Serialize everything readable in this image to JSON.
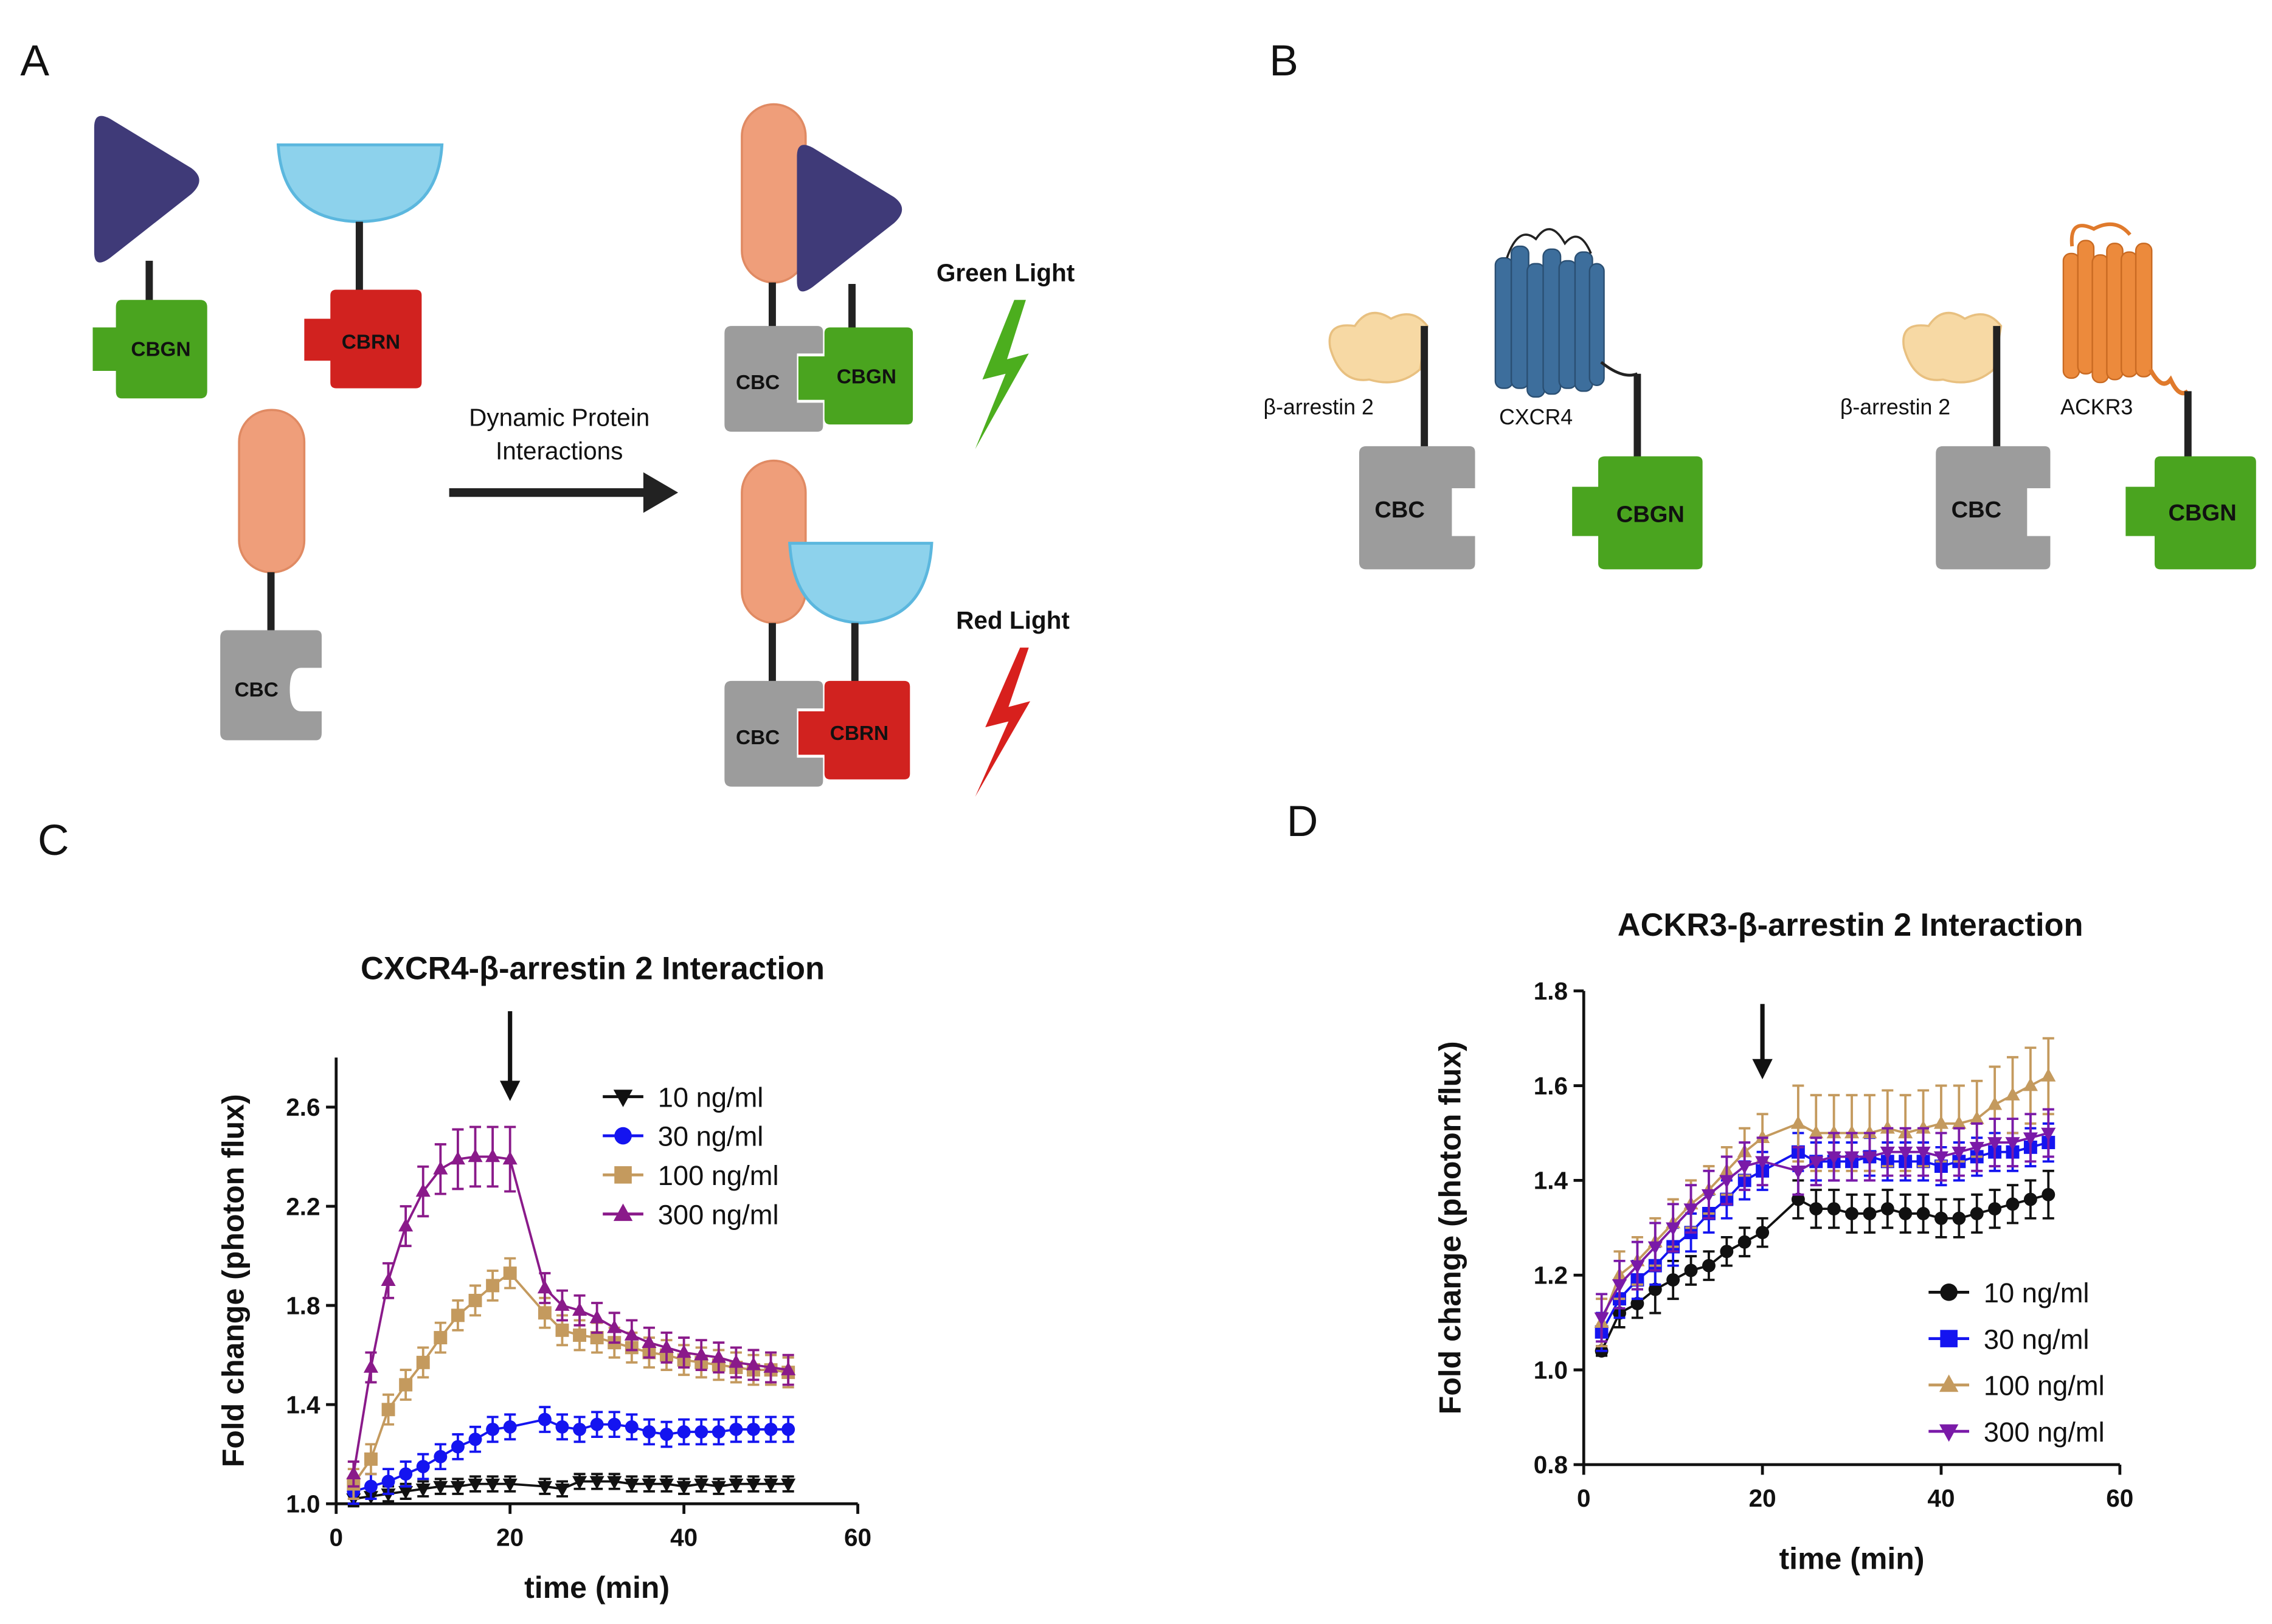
{
  "panel_a": {
    "label": "A",
    "left_tags": [
      "CBGN",
      "CBRN",
      "CBC"
    ],
    "arrow_label_lines": [
      "Dynamic Protein",
      "Interactions"
    ],
    "complexes": [
      {
        "tags": [
          "CBC",
          "CBGN"
        ],
        "light": "Green Light"
      },
      {
        "tags": [
          "CBC",
          "CBRN"
        ],
        "light": "Red Light"
      }
    ]
  },
  "panel_b": {
    "label": "B",
    "pairs": [
      {
        "arrestin": "β-arrestin 2",
        "receptor": "CXCR4",
        "tags": [
          "CBC",
          "CBGN"
        ]
      },
      {
        "arrestin": "β-arrestin 2",
        "receptor": "ACKR3",
        "tags": [
          "CBC",
          "CBGN"
        ]
      }
    ]
  },
  "chart_data": [
    {
      "type": "line",
      "panel": "C",
      "title": "CXCR4-β-arrestin 2 Interaction",
      "x_label": "time (min)",
      "y_label": "Fold change (photon flux)",
      "xlim": [
        0,
        60
      ],
      "xticks": [
        0,
        20,
        40,
        60
      ],
      "ylim": [
        1.0,
        2.8
      ],
      "yticks": [
        {
          "value": 1.0,
          "label": "1.0"
        },
        1.4,
        1.8,
        2.2,
        2.6
      ],
      "arrow_at": 20,
      "legend": "upper right",
      "x": [
        2,
        4,
        6,
        8,
        10,
        12,
        14,
        16,
        18,
        20,
        24,
        26,
        28,
        30,
        32,
        34,
        36,
        38,
        40,
        42,
        44,
        46,
        48,
        50,
        52
      ],
      "series": [
        {
          "name": "10 ng/ml",
          "color": "#111111",
          "marker": "triangle-down",
          "values": [
            1.02,
            1.03,
            1.04,
            1.05,
            1.06,
            1.07,
            1.07,
            1.08,
            1.08,
            1.08,
            1.07,
            1.06,
            1.09,
            1.09,
            1.09,
            1.08,
            1.08,
            1.08,
            1.07,
            1.08,
            1.07,
            1.08,
            1.08,
            1.08,
            1.08
          ],
          "errors": [
            0.03,
            0.03,
            0.03,
            0.03,
            0.03,
            0.03,
            0.03,
            0.03,
            0.03,
            0.03,
            0.03,
            0.03,
            0.03,
            0.03,
            0.03,
            0.03,
            0.03,
            0.03,
            0.03,
            0.03,
            0.03,
            0.03,
            0.03,
            0.03,
            0.03
          ]
        },
        {
          "name": "30 ng/ml",
          "color": "#1414f0",
          "marker": "circle",
          "values": [
            1.05,
            1.07,
            1.09,
            1.12,
            1.15,
            1.19,
            1.23,
            1.26,
            1.3,
            1.31,
            1.34,
            1.31,
            1.3,
            1.32,
            1.32,
            1.31,
            1.29,
            1.28,
            1.29,
            1.29,
            1.29,
            1.3,
            1.3,
            1.3,
            1.3
          ],
          "errors": [
            0.05,
            0.05,
            0.05,
            0.05,
            0.05,
            0.05,
            0.05,
            0.05,
            0.05,
            0.05,
            0.05,
            0.05,
            0.05,
            0.05,
            0.05,
            0.05,
            0.05,
            0.05,
            0.05,
            0.05,
            0.05,
            0.05,
            0.05,
            0.05,
            0.05
          ]
        },
        {
          "name": "100 ng/ml",
          "color": "#c49a5e",
          "marker": "square",
          "values": [
            1.08,
            1.18,
            1.38,
            1.48,
            1.57,
            1.67,
            1.76,
            1.82,
            1.88,
            1.93,
            1.77,
            1.7,
            1.68,
            1.67,
            1.65,
            1.63,
            1.61,
            1.6,
            1.58,
            1.57,
            1.56,
            1.55,
            1.54,
            1.54,
            1.53
          ],
          "errors": [
            0.06,
            0.06,
            0.06,
            0.06,
            0.06,
            0.06,
            0.06,
            0.06,
            0.06,
            0.06,
            0.06,
            0.06,
            0.06,
            0.06,
            0.06,
            0.06,
            0.06,
            0.06,
            0.06,
            0.06,
            0.06,
            0.06,
            0.06,
            0.06,
            0.06
          ]
        },
        {
          "name": "300 ng/ml",
          "color": "#8a1a8a",
          "marker": "triangle-up",
          "values": [
            1.12,
            1.55,
            1.9,
            2.12,
            2.26,
            2.35,
            2.39,
            2.4,
            2.4,
            2.39,
            1.87,
            1.8,
            1.78,
            1.75,
            1.71,
            1.68,
            1.65,
            1.63,
            1.61,
            1.6,
            1.59,
            1.57,
            1.56,
            1.55,
            1.54
          ],
          "errors": [
            0.05,
            0.06,
            0.07,
            0.08,
            0.1,
            0.1,
            0.12,
            0.12,
            0.12,
            0.13,
            0.06,
            0.06,
            0.06,
            0.06,
            0.06,
            0.06,
            0.06,
            0.06,
            0.06,
            0.06,
            0.06,
            0.06,
            0.06,
            0.06,
            0.06
          ]
        }
      ]
    },
    {
      "type": "line",
      "panel": "D",
      "title": "ACKR3-β-arrestin 2 Interaction",
      "x_label": "time (min)",
      "y_label": "Fold change (photon flux)",
      "xlim": [
        0,
        60
      ],
      "xticks": [
        0,
        20,
        40,
        60
      ],
      "ylim": [
        0.8,
        1.8
      ],
      "yticks": [
        {
          "value": 0.8,
          "label": "0.8"
        },
        {
          "value": 1.0,
          "label": "1.0"
        },
        1.2,
        1.4,
        1.6,
        1.8
      ],
      "arrow_at": 20,
      "legend": "lower right",
      "x": [
        2,
        4,
        6,
        8,
        10,
        12,
        14,
        16,
        18,
        20,
        24,
        26,
        28,
        30,
        32,
        34,
        36,
        38,
        40,
        42,
        44,
        46,
        48,
        50,
        52
      ],
      "series": [
        {
          "name": "10 ng/ml",
          "color": "#111111",
          "marker": "circle",
          "values": [
            1.04,
            1.12,
            1.14,
            1.17,
            1.19,
            1.21,
            1.22,
            1.25,
            1.27,
            1.29,
            1.36,
            1.34,
            1.34,
            1.33,
            1.33,
            1.34,
            1.33,
            1.33,
            1.32,
            1.32,
            1.33,
            1.34,
            1.35,
            1.36,
            1.37
          ],
          "errors": [
            0.01,
            0.03,
            0.03,
            0.05,
            0.04,
            0.03,
            0.03,
            0.03,
            0.03,
            0.03,
            0.04,
            0.04,
            0.04,
            0.04,
            0.04,
            0.04,
            0.04,
            0.04,
            0.04,
            0.04,
            0.04,
            0.04,
            0.04,
            0.04,
            0.05
          ]
        },
        {
          "name": "30 ng/ml",
          "color": "#1414f0",
          "marker": "square",
          "values": [
            1.08,
            1.15,
            1.19,
            1.22,
            1.26,
            1.29,
            1.33,
            1.36,
            1.4,
            1.42,
            1.46,
            1.44,
            1.44,
            1.44,
            1.45,
            1.44,
            1.44,
            1.44,
            1.43,
            1.44,
            1.45,
            1.46,
            1.46,
            1.47,
            1.48
          ],
          "errors": [
            0.04,
            0.04,
            0.04,
            0.04,
            0.04,
            0.04,
            0.04,
            0.04,
            0.04,
            0.04,
            0.04,
            0.04,
            0.04,
            0.04,
            0.04,
            0.04,
            0.04,
            0.04,
            0.04,
            0.04,
            0.04,
            0.04,
            0.04,
            0.04,
            0.04
          ]
        },
        {
          "name": "100 ng/ml",
          "color": "#c49a5e",
          "marker": "triangle-up",
          "values": [
            1.1,
            1.2,
            1.23,
            1.27,
            1.31,
            1.35,
            1.38,
            1.42,
            1.46,
            1.49,
            1.52,
            1.5,
            1.5,
            1.5,
            1.5,
            1.51,
            1.5,
            1.51,
            1.52,
            1.52,
            1.53,
            1.56,
            1.58,
            1.6,
            1.62
          ],
          "errors": [
            0.05,
            0.05,
            0.05,
            0.05,
            0.05,
            0.05,
            0.05,
            0.05,
            0.05,
            0.05,
            0.08,
            0.08,
            0.08,
            0.08,
            0.08,
            0.08,
            0.08,
            0.08,
            0.08,
            0.08,
            0.08,
            0.08,
            0.08,
            0.08,
            0.08
          ]
        },
        {
          "name": "300 ng/ml",
          "color": "#7a1aa8",
          "marker": "triangle-down",
          "values": [
            1.11,
            1.18,
            1.22,
            1.26,
            1.3,
            1.34,
            1.37,
            1.4,
            1.43,
            1.44,
            1.42,
            1.44,
            1.45,
            1.45,
            1.45,
            1.46,
            1.46,
            1.46,
            1.45,
            1.46,
            1.47,
            1.48,
            1.48,
            1.49,
            1.5
          ],
          "errors": [
            0.05,
            0.05,
            0.05,
            0.05,
            0.05,
            0.05,
            0.05,
            0.05,
            0.05,
            0.05,
            0.05,
            0.05,
            0.05,
            0.05,
            0.05,
            0.05,
            0.05,
            0.05,
            0.05,
            0.05,
            0.05,
            0.05,
            0.05,
            0.05,
            0.05
          ]
        }
      ]
    }
  ]
}
